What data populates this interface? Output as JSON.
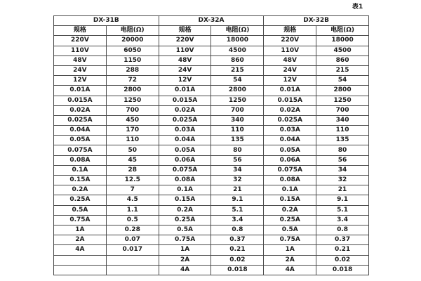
{
  "page_label": "表1",
  "colors": {
    "border": "#4a4a4a",
    "text": "#1a1a1a",
    "background": "#ffffff"
  },
  "table": {
    "groups": [
      {
        "name": "DX-31B",
        "col_headers": [
          "规格",
          "电阻(Ω)"
        ],
        "rows": [
          [
            "220V",
            "20000"
          ],
          [
            "110V",
            "6050"
          ],
          [
            "48V",
            "1150"
          ],
          [
            "24V",
            "288"
          ],
          [
            "12V",
            "72"
          ],
          [
            "0.01A",
            "2800"
          ],
          [
            "0.015A",
            "1250"
          ],
          [
            "0.02A",
            "700"
          ],
          [
            "0.025A",
            "450"
          ],
          [
            "0.04A",
            "170"
          ],
          [
            "0.05A",
            "110"
          ],
          [
            "0.075A",
            "50"
          ],
          [
            "0.08A",
            "45"
          ],
          [
            "0.1A",
            "28"
          ],
          [
            "0.15A",
            "12.5"
          ],
          [
            "0.2A",
            "7"
          ],
          [
            "0.25A",
            "4.5"
          ],
          [
            "0.5A",
            "1.1"
          ],
          [
            "0.75A",
            "0.5"
          ],
          [
            "1A",
            "0.28"
          ],
          [
            "2A",
            "0.07"
          ],
          [
            "4A",
            "0.017"
          ],
          [
            "",
            ""
          ],
          [
            "",
            ""
          ]
        ]
      },
      {
        "name": "DX-32A",
        "col_headers": [
          "规格",
          "电阻(Ω)"
        ],
        "rows": [
          [
            "220V",
            "18000"
          ],
          [
            "110V",
            "4500"
          ],
          [
            "48V",
            "860"
          ],
          [
            "24V",
            "215"
          ],
          [
            "12V",
            "54"
          ],
          [
            "0.01A",
            "2800"
          ],
          [
            "0.015A",
            "1250"
          ],
          [
            "0.02A",
            "700"
          ],
          [
            "0.025A",
            "340"
          ],
          [
            "0.03A",
            "110"
          ],
          [
            "0.04A",
            "135"
          ],
          [
            "0.05A",
            "80"
          ],
          [
            "0.06A",
            "56"
          ],
          [
            "0.075A",
            "34"
          ],
          [
            "0.08A",
            "32"
          ],
          [
            "0.1A",
            "21"
          ],
          [
            "0.15A",
            "9.1"
          ],
          [
            "0.2A",
            "5.1"
          ],
          [
            "0.25A",
            "3.4"
          ],
          [
            "0.5A",
            "0.8"
          ],
          [
            "0.75A",
            "0.37"
          ],
          [
            "1A",
            "0.21"
          ],
          [
            "2A",
            "0.02"
          ],
          [
            "4A",
            "0.018"
          ]
        ]
      },
      {
        "name": "DX-32B",
        "col_headers": [
          "规格",
          "电阻(Ω)"
        ],
        "rows": [
          [
            "220V",
            "18000"
          ],
          [
            "110V",
            "4500"
          ],
          [
            "48V",
            "860"
          ],
          [
            "24V",
            "215"
          ],
          [
            "12V",
            "54"
          ],
          [
            "0.01A",
            "2800"
          ],
          [
            "0.015A",
            "1250"
          ],
          [
            "0.02A",
            "700"
          ],
          [
            "0.025A",
            "340"
          ],
          [
            "0.03A",
            "110"
          ],
          [
            "0.04A",
            "135"
          ],
          [
            "0.05A",
            "80"
          ],
          [
            "0.06A",
            "56"
          ],
          [
            "0.075A",
            "34"
          ],
          [
            "0.08A",
            "32"
          ],
          [
            "0.1A",
            "21"
          ],
          [
            "0.15A",
            "9.1"
          ],
          [
            "0.2A",
            "5.1"
          ],
          [
            "0.25A",
            "3.4"
          ],
          [
            "0.5A",
            "0.8"
          ],
          [
            "0.75A",
            "0.37"
          ],
          [
            "1A",
            "0.21"
          ],
          [
            "2A",
            "0.02"
          ],
          [
            "4A",
            "0.018"
          ]
        ]
      }
    ]
  }
}
